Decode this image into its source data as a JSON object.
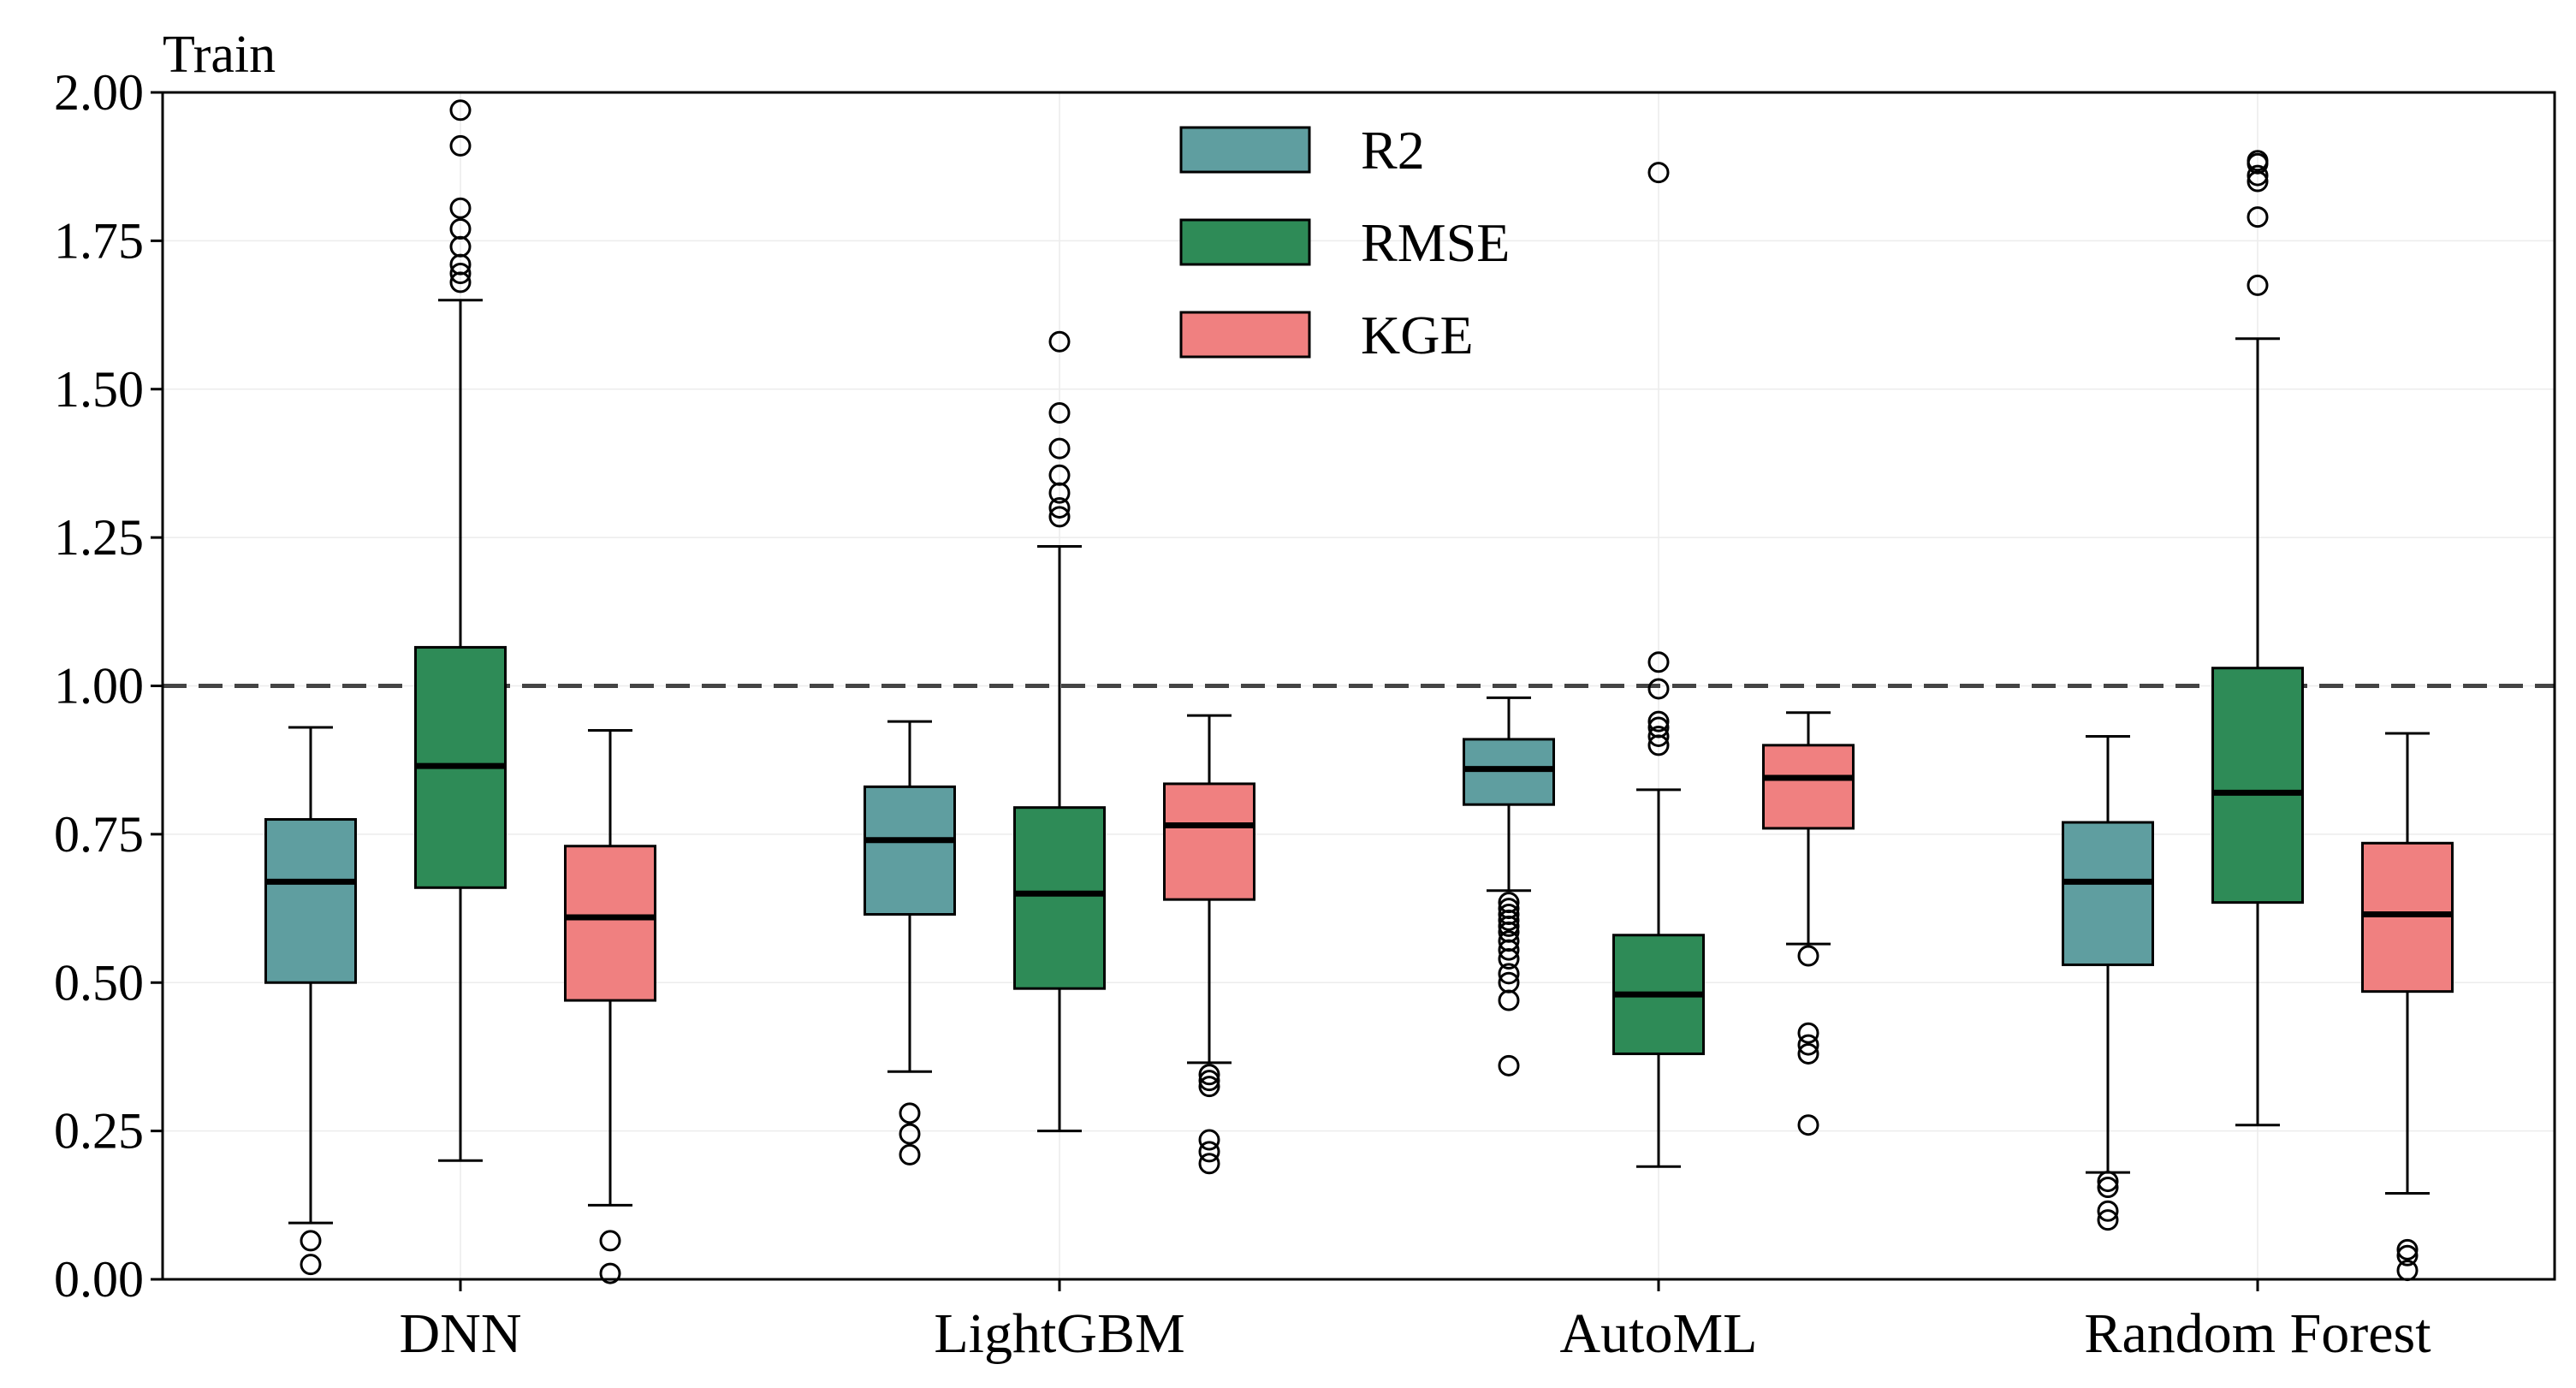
{
  "chart_data": {
    "type": "boxplot",
    "title": "Train",
    "xlabel": "",
    "ylabel": "",
    "ylim": [
      0,
      2
    ],
    "yticks": [
      0.0,
      0.25,
      0.5,
      0.75,
      1.0,
      1.25,
      1.5,
      1.75,
      2.0
    ],
    "ytick_labels": [
      "0.00",
      "0.25",
      "0.50",
      "0.75",
      "1.00",
      "1.25",
      "1.50",
      "1.75",
      "2.00"
    ],
    "reference_line": {
      "y": 1.0,
      "style": "dashed"
    },
    "grid": true,
    "legend_position": "top-center",
    "categories": [
      "DNN",
      "LightGBM",
      "AutoML",
      "Random Forest"
    ],
    "series": [
      {
        "name": "R2",
        "color": "#5f9ea0",
        "boxes": [
          {
            "whislo": 0.095,
            "q1": 0.5,
            "med": 0.67,
            "q3": 0.775,
            "whishi": 0.93,
            "fliers": [
              0.065,
              0.025
            ]
          },
          {
            "whislo": 0.35,
            "q1": 0.615,
            "med": 0.74,
            "q3": 0.83,
            "whishi": 0.94,
            "fliers": [
              0.28,
              0.245,
              0.21
            ]
          },
          {
            "whislo": 0.655,
            "q1": 0.8,
            "med": 0.86,
            "q3": 0.91,
            "whishi": 0.98,
            "fliers": [
              0.635,
              0.625,
              0.615,
              0.605,
              0.595,
              0.585,
              0.57,
              0.555,
              0.54,
              0.515,
              0.5,
              0.47,
              0.36
            ]
          },
          {
            "whislo": 0.18,
            "q1": 0.53,
            "med": 0.67,
            "q3": 0.77,
            "whishi": 0.915,
            "fliers": [
              0.165,
              0.155,
              0.115,
              0.1
            ]
          }
        ]
      },
      {
        "name": "RMSE",
        "color": "#2e8b57",
        "boxes": [
          {
            "whislo": 0.2,
            "q1": 0.66,
            "med": 0.865,
            "q3": 1.065,
            "whishi": 1.65,
            "fliers": [
              1.68,
              1.695,
              1.71,
              1.74,
              1.77,
              1.805,
              1.91,
              1.97
            ]
          },
          {
            "whislo": 0.25,
            "q1": 0.49,
            "med": 0.65,
            "q3": 0.795,
            "whishi": 1.235,
            "fliers": [
              1.285,
              1.3,
              1.325,
              1.355,
              1.4,
              1.46,
              1.58
            ]
          },
          {
            "whislo": 0.19,
            "q1": 0.38,
            "med": 0.48,
            "q3": 0.58,
            "whishi": 0.825,
            "fliers": [
              0.9,
              0.915,
              0.93,
              0.94,
              0.995,
              1.04,
              1.865
            ]
          },
          {
            "whislo": 0.26,
            "q1": 0.635,
            "med": 0.82,
            "q3": 1.03,
            "whishi": 1.585,
            "fliers": [
              1.675,
              1.79,
              1.85,
              1.86,
              1.88,
              1.885
            ]
          }
        ]
      },
      {
        "name": "KGE",
        "color": "#f08080",
        "boxes": [
          {
            "whislo": 0.125,
            "q1": 0.47,
            "med": 0.61,
            "q3": 0.73,
            "whishi": 0.925,
            "fliers": [
              0.065,
              0.01
            ]
          },
          {
            "whislo": 0.365,
            "q1": 0.64,
            "med": 0.765,
            "q3": 0.835,
            "whishi": 0.95,
            "fliers": [
              0.345,
              0.335,
              0.325,
              0.235,
              0.215,
              0.195
            ]
          },
          {
            "whislo": 0.565,
            "q1": 0.76,
            "med": 0.845,
            "q3": 0.9,
            "whishi": 0.955,
            "fliers": [
              0.545,
              0.415,
              0.395,
              0.38,
              0.26
            ]
          },
          {
            "whislo": 0.145,
            "q1": 0.485,
            "med": 0.615,
            "q3": 0.735,
            "whishi": 0.92,
            "fliers": [
              0.05,
              0.04,
              0.015
            ]
          }
        ]
      }
    ]
  }
}
